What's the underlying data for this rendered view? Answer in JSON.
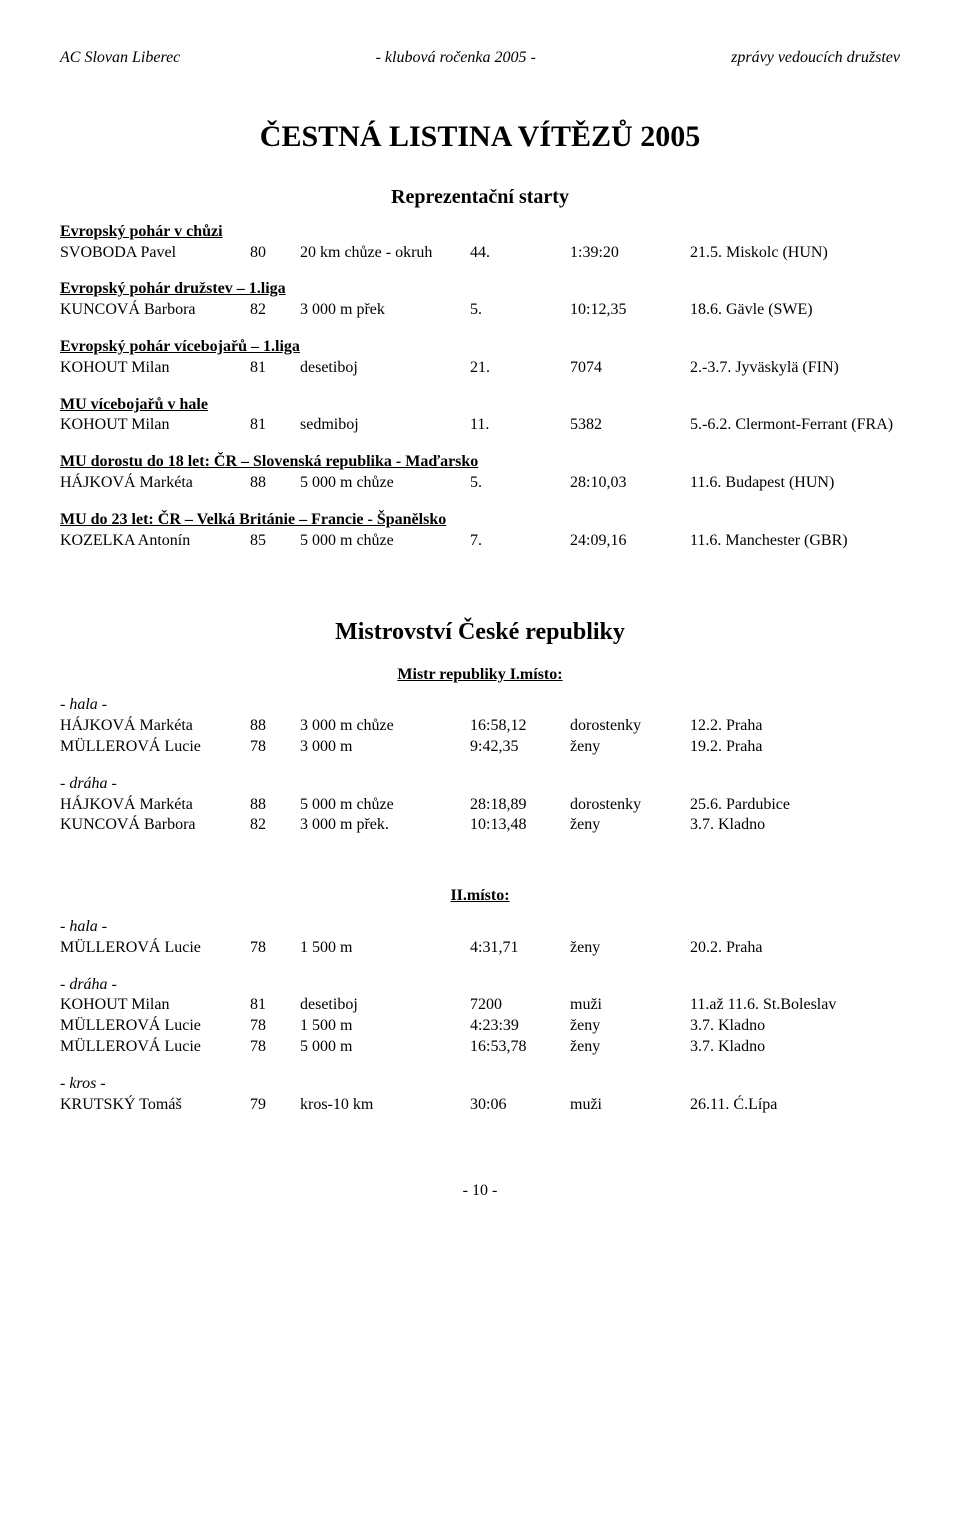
{
  "header": {
    "left": "AC Slovan Liberec",
    "center": "- klubová ročenka 2005 -",
    "right": "zprávy vedoucích družstev"
  },
  "main_title": "ČESTNÁ LISTINA VÍTĚZŮ 2005",
  "rep_title": "Reprezentační starty",
  "groups_rep": [
    {
      "title": "Evropský pohár v chůzi",
      "rows": [
        {
          "name": "SVOBODA Pavel",
          "yr": "80",
          "event": "20 km chůze - okruh",
          "r1": "44.",
          "r2": "1:39:20",
          "r3": "21.5. Miskolc (HUN)"
        }
      ]
    },
    {
      "title": "Evropský pohár družstev – 1.liga",
      "rows": [
        {
          "name": "KUNCOVÁ Barbora",
          "yr": "82",
          "event": "3 000 m přek",
          "r1": "5.",
          "r2": "10:12,35",
          "r3": "18.6. Gävle (SWE)"
        }
      ]
    },
    {
      "title": "Evropský pohár vícebojařů – 1.liga",
      "rows": [
        {
          "name": "KOHOUT Milan",
          "yr": "81",
          "event": "desetiboj",
          "r1": "21.",
          "r2": "7074",
          "r3": "2.-3.7. Jyväskylä (FIN)"
        }
      ]
    },
    {
      "title": "MU vícebojařů v hale",
      "rows": [
        {
          "name": "KOHOUT Milan",
          "yr": "81",
          "event": "sedmiboj",
          "r1": "11.",
          "r2": "5382",
          "r3": "5.-6.2. Clermont-Ferrant (FRA)"
        }
      ]
    },
    {
      "title": "MU dorostu do 18 let: ČR – Slovenská republika - Maďarsko",
      "rows": [
        {
          "name": "HÁJKOVÁ Markéta",
          "yr": "88",
          "event": "5 000 m chůze",
          "r1": "5.",
          "r2": "28:10,03",
          "r3": "11.6. Budapest (HUN)"
        }
      ]
    },
    {
      "title": "MU do 23 let: ČR – Velká Británie – Francie - Španělsko",
      "rows": [
        {
          "name": "KOZELKA Antonín",
          "yr": "85",
          "event": "5 000 m chůze",
          "r1": "7.",
          "r2": "24:09,16",
          "r3": "11.6. Manchester (GBR)"
        }
      ]
    }
  ],
  "mcr_title": "Mistrovství České republiky",
  "placements": [
    {
      "title": "Mistr republiky I.místo:",
      "blocks": [
        {
          "context": "- hala -",
          "rows": [
            {
              "name": "HÁJKOVÁ Markéta",
              "yr": "88",
              "event": "3 000 m chůze",
              "r1": "16:58,12",
              "r2": "dorostenky",
              "r3": "12.2. Praha"
            },
            {
              "name": "MÜLLEROVÁ Lucie",
              "yr": "78",
              "event": "3 000 m",
              "r1": "9:42,35",
              "r2": "ženy",
              "r3": "19.2. Praha"
            }
          ]
        },
        {
          "context": "- dráha -",
          "rows": [
            {
              "name": "HÁJKOVÁ Markéta",
              "yr": "88",
              "event": "5 000 m chůze",
              "r1": "28:18,89",
              "r2": "dorostenky",
              "r3": "25.6. Pardubice"
            },
            {
              "name": "KUNCOVÁ Barbora",
              "yr": "82",
              "event": "3 000 m přek.",
              "r1": "10:13,48",
              "r2": "ženy",
              "r3": "3.7. Kladno"
            }
          ]
        }
      ]
    },
    {
      "title": "II.místo:",
      "blocks": [
        {
          "context": "- hala -",
          "rows": [
            {
              "name": "MÜLLEROVÁ Lucie",
              "yr": "78",
              "event": "1 500 m",
              "r1": "4:31,71",
              "r2": "ženy",
              "r3": "20.2. Praha"
            }
          ]
        },
        {
          "context": "- dráha -",
          "rows": [
            {
              "name": "KOHOUT Milan",
              "yr": "81",
              "event": "desetiboj",
              "r1": "7200",
              "r2": "muži",
              "r3": "11.až 11.6. St.Boleslav"
            },
            {
              "name": "MÜLLEROVÁ Lucie",
              "yr": "78",
              "event": "1 500 m",
              "r1": "4:23:39",
              "r2": "ženy",
              "r3": "3.7. Kladno"
            },
            {
              "name": "MÜLLEROVÁ Lucie",
              "yr": "78",
              "event": "5 000 m",
              "r1": "16:53,78",
              "r2": "ženy",
              "r3": "3.7. Kladno"
            }
          ]
        },
        {
          "context": "- kros -",
          "rows": [
            {
              "name": "KRUTSKÝ Tomáš",
              "yr": "79",
              "event": "kros-10 km",
              "r1": "30:06",
              "r2": "muži",
              "r3": "26.11. Ć.Lípa"
            }
          ]
        }
      ]
    }
  ],
  "page_number": "- 10 -"
}
